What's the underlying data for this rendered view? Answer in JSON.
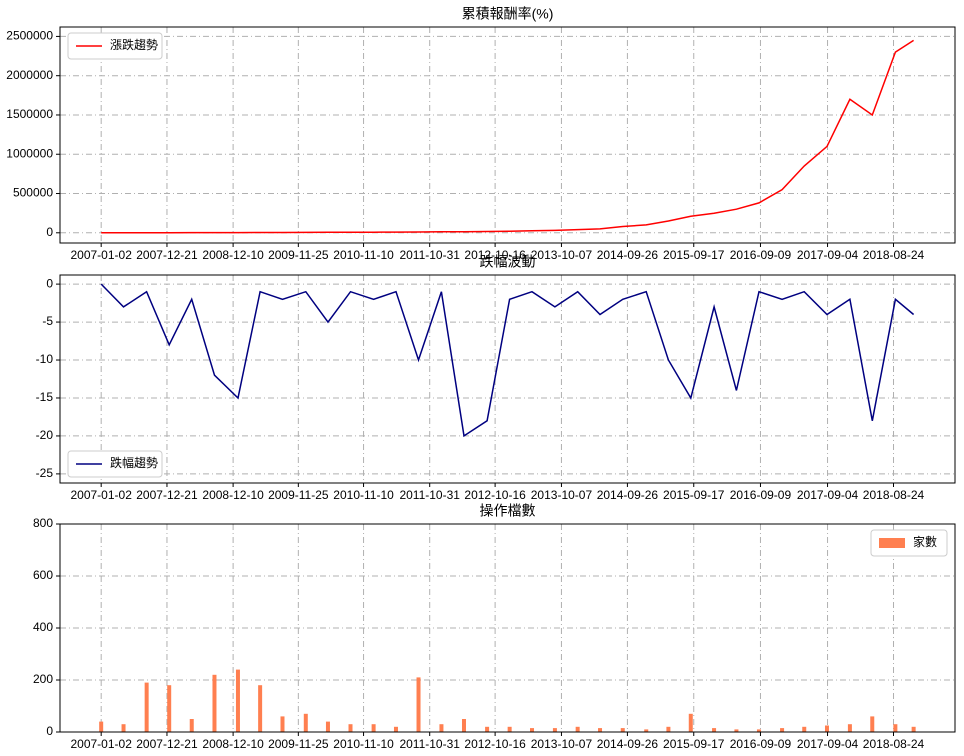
{
  "chart_data": [
    {
      "type": "line",
      "title": "累積報酬率(%)",
      "legend": "upper left",
      "x": [
        "2007-01-02",
        "2007-05-02",
        "2007-09-03",
        "2008-01-02",
        "2008-05-02",
        "2008-09-01",
        "2009-01-05",
        "2009-05-04",
        "2009-09-01",
        "2010-01-04",
        "2010-05-03",
        "2010-09-01",
        "2011-01-03",
        "2011-05-03",
        "2011-09-01",
        "2012-01-02",
        "2012-05-02",
        "2012-09-03",
        "2013-01-02",
        "2013-05-02",
        "2013-09-02",
        "2014-01-02",
        "2014-05-02",
        "2014-09-01",
        "2015-01-05",
        "2015-05-04",
        "2015-09-01",
        "2016-01-04",
        "2016-05-03",
        "2016-09-01",
        "2017-01-03",
        "2017-05-02",
        "2017-09-01",
        "2018-01-02",
        "2018-05-02",
        "2018-09-03",
        "2018-12-10"
      ],
      "series": [
        {
          "name": "漲跌趨勢",
          "color": "#ff0000",
          "values": [
            0,
            500,
            1000,
            1500,
            2000,
            2500,
            3000,
            3500,
            4000,
            5000,
            6000,
            7000,
            8000,
            9000,
            10000,
            12000,
            14000,
            17000,
            20000,
            25000,
            30000,
            40000,
            50000,
            80000,
            100000,
            150000,
            210000,
            250000,
            300000,
            380000,
            550000,
            850000,
            1100000,
            1700000,
            1500000,
            2300000,
            2450000
          ]
        }
      ],
      "xticks": [
        "2007-01-02",
        "2007-12-21",
        "2008-12-10",
        "2009-11-25",
        "2010-11-10",
        "2011-10-31",
        "2012-10-16",
        "2013-10-07",
        "2014-09-26",
        "2015-09-17",
        "2016-09-09",
        "2017-09-04",
        "2018-08-24"
      ],
      "xlim": [
        "2006-05-26",
        "2019-07-20"
      ],
      "ylim": [
        -130000,
        2620000
      ],
      "yticks": [
        0,
        500000,
        1000000,
        1500000,
        2000000,
        2500000
      ],
      "grid": true
    },
    {
      "type": "line",
      "title": "跌幅波動",
      "legend": "lower left",
      "x": [
        "2007-01-02",
        "2007-05-02",
        "2007-09-03",
        "2008-01-02",
        "2008-05-02",
        "2008-09-01",
        "2009-01-05",
        "2009-05-04",
        "2009-09-01",
        "2010-01-04",
        "2010-05-03",
        "2010-09-01",
        "2011-01-03",
        "2011-05-03",
        "2011-09-01",
        "2012-01-02",
        "2012-05-02",
        "2012-09-03",
        "2013-01-02",
        "2013-05-02",
        "2013-09-02",
        "2014-01-02",
        "2014-05-02",
        "2014-09-01",
        "2015-01-05",
        "2015-05-04",
        "2015-09-01",
        "2016-01-04",
        "2016-05-03",
        "2016-09-01",
        "2017-01-03",
        "2017-05-02",
        "2017-09-01",
        "2018-01-02",
        "2018-05-02",
        "2018-09-03",
        "2018-12-10"
      ],
      "series": [
        {
          "name": "跌幅趨勢",
          "color": "#000080",
          "values": [
            0,
            -3,
            -1,
            -8,
            -2,
            -12,
            -15,
            -1,
            -2,
            -1,
            -5,
            -1,
            -2,
            -1,
            -10,
            -1,
            -20,
            -18,
            -2,
            -1,
            -3,
            -1,
            -4,
            -2,
            -1,
            -10,
            -15,
            -3,
            -14,
            -1,
            -2,
            -1,
            -4,
            -2,
            -18,
            -2,
            -4
          ]
        }
      ],
      "xticks": [
        "2007-01-02",
        "2007-12-21",
        "2008-12-10",
        "2009-11-25",
        "2010-11-10",
        "2011-10-31",
        "2012-10-16",
        "2013-10-07",
        "2014-09-26",
        "2015-09-17",
        "2016-09-09",
        "2017-09-04",
        "2018-08-24"
      ],
      "xlim": [
        "2006-05-26",
        "2019-07-20"
      ],
      "ylim": [
        -26.2,
        1.2
      ],
      "yticks": [
        -25,
        -20,
        -15,
        -10,
        -5,
        0
      ],
      "grid": true
    },
    {
      "type": "bar",
      "title": "操作檔數",
      "legend": "upper right",
      "x": [
        "2007-01-02",
        "2007-05-02",
        "2007-09-03",
        "2008-01-02",
        "2008-05-02",
        "2008-09-01",
        "2009-01-05",
        "2009-05-04",
        "2009-09-01",
        "2010-01-04",
        "2010-05-03",
        "2010-09-01",
        "2011-01-03",
        "2011-05-03",
        "2011-09-01",
        "2012-01-02",
        "2012-05-02",
        "2012-09-03",
        "2013-01-02",
        "2013-05-02",
        "2013-09-02",
        "2014-01-02",
        "2014-05-02",
        "2014-09-01",
        "2015-01-05",
        "2015-05-04",
        "2015-09-01",
        "2016-01-04",
        "2016-05-03",
        "2016-09-01",
        "2017-01-03",
        "2017-05-02",
        "2017-09-01",
        "2018-01-02",
        "2018-05-02",
        "2018-09-03",
        "2018-12-10"
      ],
      "series": [
        {
          "name": "家數",
          "color": "#ff7f50",
          "values": [
            40,
            30,
            190,
            180,
            50,
            220,
            240,
            180,
            60,
            70,
            40,
            30,
            30,
            20,
            210,
            30,
            50,
            20,
            20,
            15,
            15,
            20,
            15,
            15,
            10,
            20,
            70,
            15,
            10,
            10,
            15,
            20,
            25,
            30,
            60,
            30,
            20
          ]
        }
      ],
      "xticks": [
        "2007-01-02",
        "2007-12-21",
        "2008-12-10",
        "2009-11-25",
        "2010-11-10",
        "2011-10-31",
        "2012-10-16",
        "2013-10-07",
        "2014-09-26",
        "2015-09-17",
        "2016-09-09",
        "2017-09-04",
        "2018-08-24"
      ],
      "xlim": [
        "2006-05-26",
        "2019-07-20"
      ],
      "ylim": [
        0,
        800
      ],
      "yticks": [
        0,
        200,
        400,
        600,
        800
      ],
      "grid": true
    }
  ]
}
